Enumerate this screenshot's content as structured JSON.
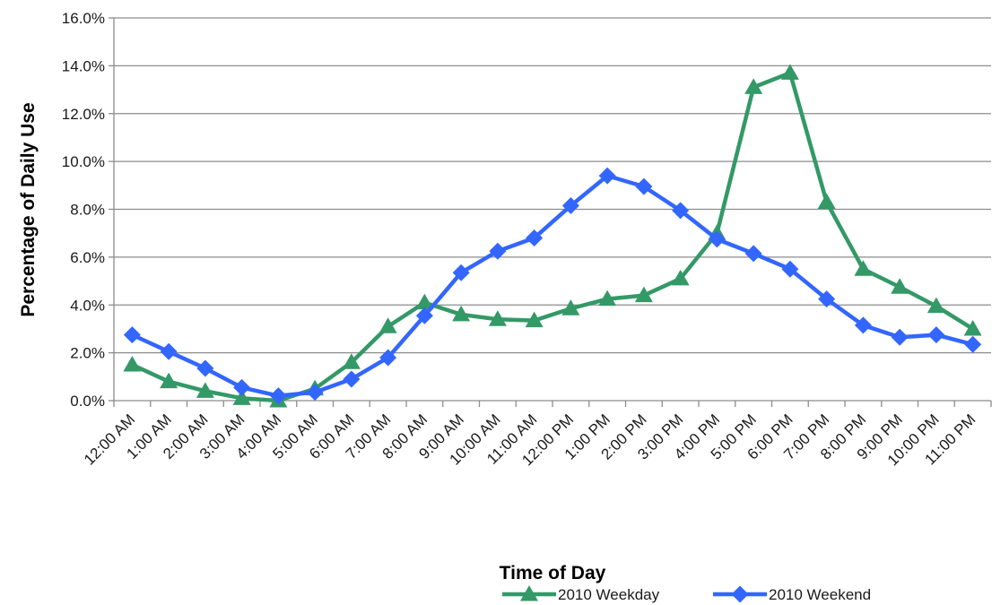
{
  "chart_data": {
    "type": "line",
    "title": "",
    "xlabel": "Time of Day",
    "ylabel": "Percentage of Daily Use",
    "ylim": [
      0,
      16
    ],
    "y_unit": "%",
    "yticks": [
      "0.0%",
      "2.0%",
      "4.0%",
      "6.0%",
      "8.0%",
      "10.0%",
      "12.0%",
      "14.0%",
      "16.0%"
    ],
    "grid": true,
    "legend_position": "bottom-right",
    "categories": [
      "12:00 AM",
      "1:00 AM",
      "2:00 AM",
      "3:00 AM",
      "4:00 AM",
      "5:00 AM",
      "6:00 AM",
      "7:00 AM",
      "8:00 AM",
      "9:00 AM",
      "10:00 AM",
      "11:00 AM",
      "12:00 PM",
      "1:00 PM",
      "2:00 PM",
      "3:00 PM",
      "4:00 PM",
      "5:00 PM",
      "6:00 PM",
      "7:00 PM",
      "8:00 PM",
      "9:00 PM",
      "10:00 PM",
      "11:00 PM"
    ],
    "series": [
      {
        "name": "2010 Weekday",
        "color": "#339966",
        "marker": "triangle",
        "values": [
          1.5,
          0.8,
          0.4,
          0.1,
          0.0,
          0.5,
          1.6,
          3.1,
          4.1,
          3.6,
          3.4,
          3.35,
          3.85,
          4.25,
          4.4,
          5.1,
          7.0,
          13.1,
          13.7,
          8.3,
          5.5,
          4.75,
          3.95,
          3.0
        ]
      },
      {
        "name": "2010 Weekend",
        "color": "#3366ff",
        "marker": "diamond",
        "values": [
          2.75,
          2.05,
          1.35,
          0.55,
          0.2,
          0.35,
          0.9,
          1.8,
          3.55,
          5.35,
          6.25,
          6.8,
          8.15,
          9.4,
          8.95,
          7.95,
          6.75,
          6.15,
          5.5,
          4.25,
          3.15,
          2.65,
          2.75,
          2.35
        ]
      }
    ]
  }
}
